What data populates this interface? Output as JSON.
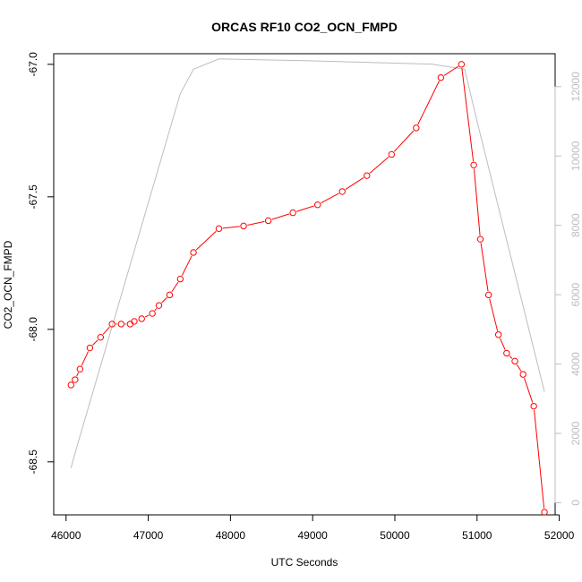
{
  "chart_data": {
    "type": "line",
    "title": "ORCAS RF10 CO2_OCN_FMPD",
    "xlabel": "UTC Seconds",
    "ylabel": "CO2_OCN_FMPD",
    "y2label": "",
    "xlim": [
      45850,
      51950
    ],
    "ylim": [
      -68.7,
      -66.96
    ],
    "y2lim": [
      -350,
      12950
    ],
    "x_ticks": [
      46000,
      47000,
      48000,
      49000,
      50000,
      51000,
      52000
    ],
    "x_tick_labels": [
      "46000",
      "47000",
      "48000",
      "49000",
      "50000",
      "51000",
      "52000"
    ],
    "y_ticks": [
      -67.0,
      -67.5,
      -68.0,
      -68.5
    ],
    "y_tick_labels": [
      "-67.0",
      "-67.5",
      "-68.0",
      "-68.5"
    ],
    "y2_ticks": [
      0,
      2000,
      4000,
      6000,
      8000,
      10000,
      12000
    ],
    "y2_tick_labels": [
      "0",
      "2000",
      "4000",
      "6000",
      "8000",
      "10000",
      "12000"
    ],
    "grid": false,
    "series": [
      {
        "name": "",
        "axis": "left",
        "color": "#ff0000",
        "marker": "circle",
        "x": [
          46060,
          46110,
          46170,
          46290,
          46420,
          46560,
          46670,
          46780,
          46830,
          46920,
          47050,
          47130,
          47260,
          47390,
          47550,
          47860,
          48160,
          48460,
          48760,
          49060,
          49360,
          49660,
          49960,
          50260,
          50560,
          50810,
          50960,
          51040,
          51140,
          51260,
          51360,
          51460,
          51560,
          51690,
          51820
        ],
        "y": [
          -68.21,
          -68.19,
          -68.15,
          -68.07,
          -68.03,
          -67.98,
          -67.98,
          -67.98,
          -67.97,
          -67.96,
          -67.94,
          -67.91,
          -67.87,
          -67.81,
          -67.71,
          -67.62,
          -67.61,
          -67.59,
          -67.56,
          -67.53,
          -67.48,
          -67.42,
          -67.34,
          -67.24,
          -67.05,
          -67.0,
          -67.38,
          -67.66,
          -67.87,
          -68.02,
          -68.09,
          -68.12,
          -68.17,
          -68.29,
          -68.69
        ]
      },
      {
        "name": "",
        "axis": "right",
        "color": "#bdbdbd",
        "marker": "none",
        "x": [
          46060,
          46130,
          47390,
          47550,
          47860,
          48900,
          50450,
          50850,
          51000,
          51820
        ],
        "y": [
          1000,
          1600,
          11800,
          12500,
          12800,
          12750,
          12650,
          12500,
          11000,
          3200
        ]
      }
    ]
  }
}
